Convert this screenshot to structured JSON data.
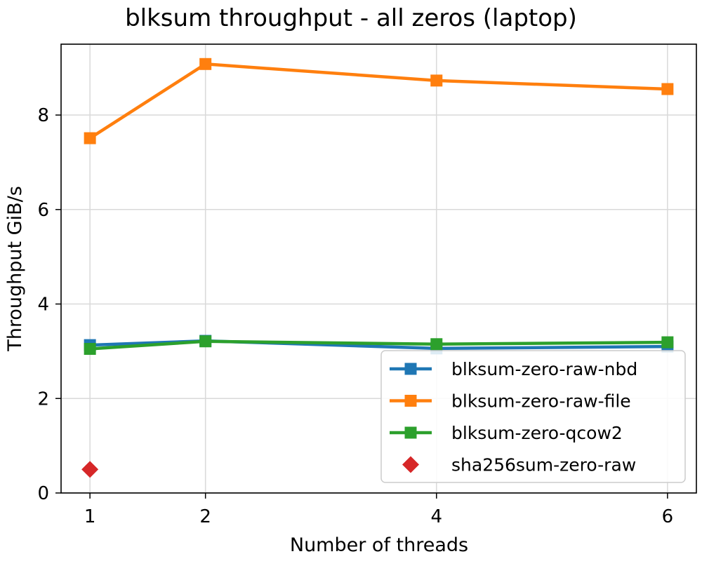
{
  "chart_data": {
    "type": "line",
    "title": "blksum throughput - all zeros (laptop)",
    "xlabel": "Number of threads",
    "ylabel": "Throughput GiB/s",
    "xlim": [
      0.75,
      6.25
    ],
    "ylim": [
      0,
      9.5
    ],
    "x_ticks": [
      1,
      2,
      4,
      6
    ],
    "y_ticks": [
      0,
      2,
      4,
      6,
      8
    ],
    "grid": true,
    "legend_position": "lower-right",
    "series": [
      {
        "name": "blksum-zero-raw-nbd",
        "color": "#1f77b4",
        "marker": "square",
        "line": true,
        "x": [
          1,
          2,
          4,
          6
        ],
        "values": [
          3.13,
          3.22,
          3.06,
          3.1
        ]
      },
      {
        "name": "blksum-zero-raw-file",
        "color": "#ff7f0e",
        "marker": "square",
        "line": true,
        "x": [
          1,
          2,
          4,
          6
        ],
        "values": [
          7.51,
          9.08,
          8.73,
          8.55
        ]
      },
      {
        "name": "blksum-zero-qcow2",
        "color": "#2ca02c",
        "marker": "square",
        "line": true,
        "x": [
          1,
          2,
          4,
          6
        ],
        "values": [
          3.05,
          3.21,
          3.15,
          3.19
        ]
      },
      {
        "name": "sha256sum-zero-raw",
        "color": "#d62728",
        "marker": "diamond",
        "line": false,
        "x": [
          1
        ],
        "values": [
          0.5
        ]
      }
    ]
  }
}
